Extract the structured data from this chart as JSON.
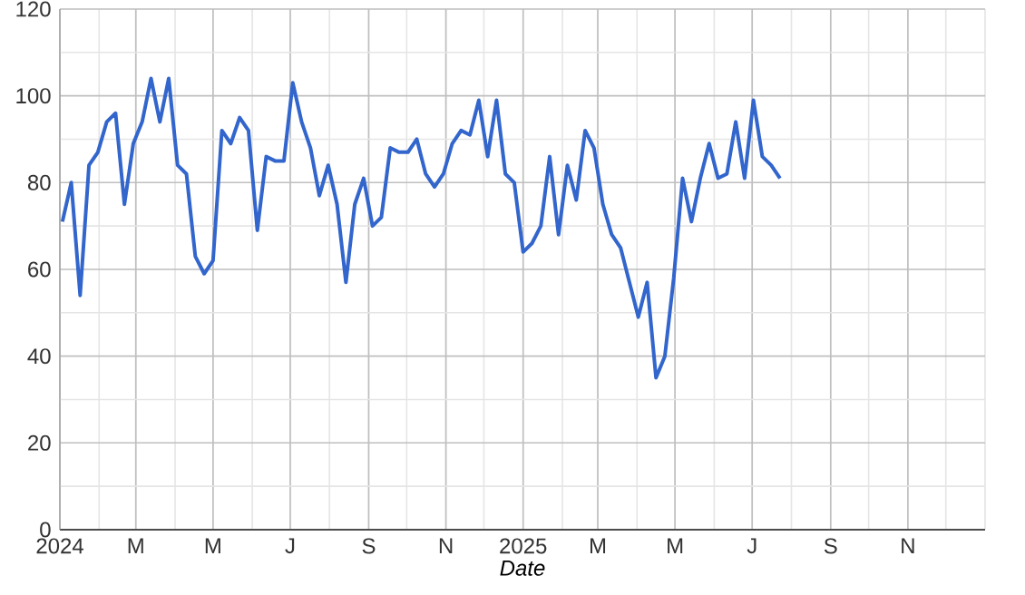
{
  "chart_data": {
    "type": "line",
    "xlabel": "Date",
    "x": [
      "2024-01-03",
      "2024-01-10",
      "2024-01-17",
      "2024-01-24",
      "2024-01-31",
      "2024-02-07",
      "2024-02-14",
      "2024-02-21",
      "2024-02-28",
      "2024-03-06",
      "2024-03-13",
      "2024-03-20",
      "2024-03-27",
      "2024-04-03",
      "2024-04-10",
      "2024-04-17",
      "2024-04-24",
      "2024-05-01",
      "2024-05-08",
      "2024-05-15",
      "2024-05-22",
      "2024-05-29",
      "2024-06-05",
      "2024-06-12",
      "2024-06-19",
      "2024-06-26",
      "2024-07-03",
      "2024-07-10",
      "2024-07-17",
      "2024-07-24",
      "2024-07-31",
      "2024-08-07",
      "2024-08-14",
      "2024-08-21",
      "2024-08-28",
      "2024-09-04",
      "2024-09-11",
      "2024-09-18",
      "2024-09-25",
      "2024-10-02",
      "2024-10-09",
      "2024-10-16",
      "2024-10-23",
      "2024-10-30",
      "2024-11-06",
      "2024-11-13",
      "2024-11-20",
      "2024-11-27",
      "2024-12-04",
      "2024-12-11",
      "2024-12-18",
      "2024-12-25",
      "2025-01-01",
      "2025-01-08",
      "2025-01-15",
      "2025-01-22",
      "2025-01-29",
      "2025-02-05",
      "2025-02-12",
      "2025-02-19",
      "2025-02-26",
      "2025-03-05",
      "2025-03-12",
      "2025-03-19",
      "2025-03-26",
      "2025-04-02",
      "2025-04-09",
      "2025-04-16",
      "2025-04-23",
      "2025-04-30",
      "2025-05-07",
      "2025-05-14",
      "2025-05-21",
      "2025-05-28",
      "2025-06-04",
      "2025-06-11",
      "2025-06-18",
      "2025-06-25",
      "2025-07-02",
      "2025-07-09",
      "2025-07-16",
      "2025-07-23"
    ],
    "series": [
      {
        "color": "#3366cc",
        "values": [
          71,
          80,
          54,
          84,
          87,
          94,
          96,
          75,
          89,
          94,
          104,
          94,
          104,
          84,
          82,
          63,
          59,
          62,
          92,
          89,
          95,
          92,
          69,
          86,
          85,
          85,
          103,
          94,
          88,
          77,
          84,
          75,
          57,
          75,
          81,
          70,
          72,
          88,
          87,
          87,
          90,
          82,
          79,
          82,
          89,
          92,
          91,
          99,
          86,
          99,
          82,
          80,
          64,
          66,
          70,
          86,
          68,
          84,
          76,
          92,
          88,
          75,
          68,
          65,
          57,
          49,
          57,
          35,
          40,
          58,
          81,
          71,
          81,
          89,
          81,
          82,
          94,
          81,
          99,
          86,
          84,
          81
        ]
      }
    ],
    "xlim": [
      "2024-01-01",
      "2026-01-01"
    ],
    "xticks": [
      {
        "value": "2024-01-01",
        "label": "2024"
      },
      {
        "value": "2024-03-01",
        "label": "M"
      },
      {
        "value": "2024-05-01",
        "label": "M"
      },
      {
        "value": "2024-07-01",
        "label": "J"
      },
      {
        "value": "2024-09-01",
        "label": "S"
      },
      {
        "value": "2024-11-01",
        "label": "N"
      },
      {
        "value": "2025-01-01",
        "label": "2025"
      },
      {
        "value": "2025-03-01",
        "label": "M"
      },
      {
        "value": "2025-05-01",
        "label": "M"
      },
      {
        "value": "2025-07-01",
        "label": "J"
      },
      {
        "value": "2025-09-01",
        "label": "S"
      },
      {
        "value": "2025-11-01",
        "label": "N"
      }
    ],
    "ylim": [
      0,
      120
    ],
    "yticks": [
      0,
      20,
      40,
      60,
      80,
      100,
      120
    ],
    "grid": true,
    "marker": "none",
    "line_style": "solid"
  }
}
